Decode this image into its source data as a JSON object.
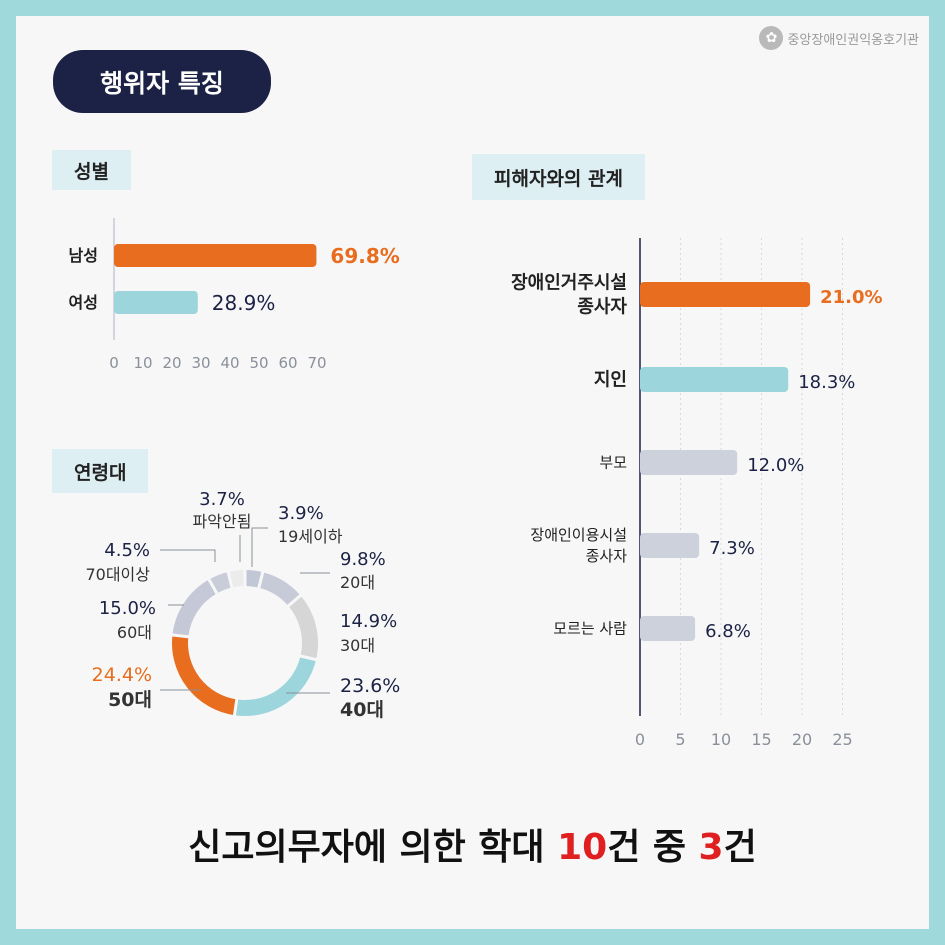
{
  "logo": {
    "text": "중앙장애인권익옹호기관",
    "icon": "emblem-icon"
  },
  "title": "행위자 특징",
  "colors": {
    "orange": "#e86d1f",
    "teal": "#9cd6dc",
    "gray": "#cdd1dc",
    "lightgray": "#d5d5d5",
    "navy": "#1c2245",
    "red": "#e02020"
  },
  "sections": {
    "gender": "성별",
    "relation": "피해자와의 관계",
    "age": "연령대"
  },
  "headline": {
    "part1": "신고의무자에 의한 학대 ",
    "num1": "10",
    "part2": "건 중 ",
    "num2": "3",
    "part3": "건"
  },
  "chart_data": [
    {
      "id": "gender",
      "type": "bar",
      "orientation": "horizontal",
      "categories": [
        "남성",
        "여성"
      ],
      "values": [
        69.8,
        28.9
      ],
      "value_labels": [
        "69.8%",
        "28.9%"
      ],
      "xlim": [
        0,
        70
      ],
      "xticks": [
        "0",
        "10",
        "20",
        "30",
        "40",
        "50",
        "60",
        "70"
      ]
    },
    {
      "id": "relation",
      "type": "bar",
      "orientation": "horizontal",
      "categories": [
        [
          "장애인거주시설",
          "종사자"
        ],
        [
          "지인"
        ],
        [
          "부모"
        ],
        [
          "장애인이용시설",
          "종사자"
        ],
        [
          "모르는 사람"
        ]
      ],
      "values": [
        21.0,
        18.3,
        12.0,
        7.3,
        6.8
      ],
      "value_labels": [
        "21.0%",
        "18.3%",
        "12.0%",
        "7.3%",
        "6.8%"
      ],
      "xlim": [
        0,
        25
      ],
      "xticks": [
        "0",
        "5",
        "10",
        "15",
        "20",
        "25"
      ],
      "grid": true
    },
    {
      "id": "age",
      "type": "pie",
      "donut": true,
      "slices": [
        {
          "label": "19세이하",
          "value": 3.9,
          "pct": "3.9%"
        },
        {
          "label": "20대",
          "value": 9.8,
          "pct": "9.8%"
        },
        {
          "label": "30대",
          "value": 14.9,
          "pct": "14.9%"
        },
        {
          "label": "40대",
          "value": 23.6,
          "pct": "23.6%"
        },
        {
          "label": "50대",
          "value": 24.4,
          "pct": "24.4%"
        },
        {
          "label": "60대",
          "value": 15.0,
          "pct": "15.0%"
        },
        {
          "label": "70대이상",
          "value": 4.5,
          "pct": "4.5%"
        },
        {
          "label": "파악안됨",
          "value": 3.7,
          "pct": "3.7%"
        }
      ]
    }
  ]
}
